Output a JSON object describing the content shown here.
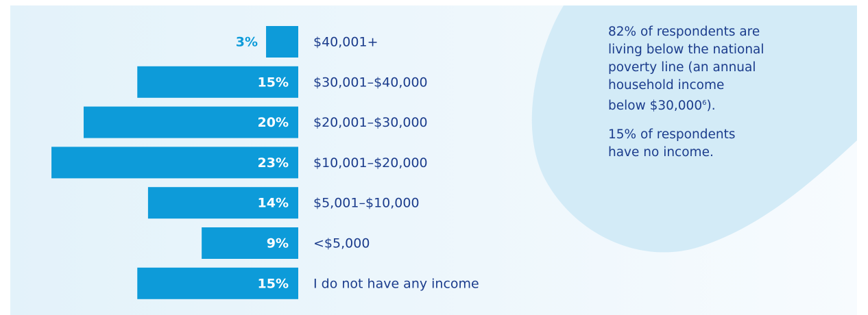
{
  "chart_data": {
    "type": "bar",
    "orientation": "horizontal",
    "categories": [
      "$40,001+",
      "$30,001–$40,000",
      "$20,001–$30,000",
      "$10,001–$20,000",
      "$5,001–$10,000",
      "<$5,000",
      "I do not have any income"
    ],
    "values": [
      3,
      15,
      20,
      23,
      14,
      9,
      15
    ],
    "value_labels": [
      "3%",
      "15%",
      "20%",
      "23%",
      "14%",
      "9%",
      "15%"
    ],
    "color": "#0d9bd9",
    "annotations": [
      {
        "lines": [
          "82% of respondents are",
          "living below the national",
          "poverty line (an annual",
          "household income",
          "below $30,000"
        ],
        "footnote": "6",
        "end": ")."
      },
      {
        "lines": [
          "15% of respondents",
          "have no income."
        ]
      }
    ]
  }
}
